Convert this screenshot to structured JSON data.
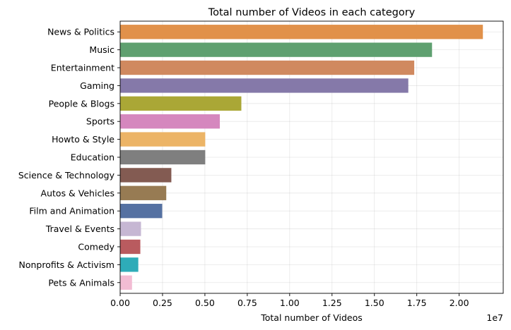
{
  "chart_data": {
    "type": "bar",
    "orientation": "horizontal",
    "title": "Total number of Videos in each category",
    "xlabel": "Total number of Videos",
    "ylabel": "",
    "x_scale_label": "1e7",
    "xlim": [
      0,
      22600000
    ],
    "x_ticks": [
      0,
      2500000,
      5000000,
      7500000,
      10000000,
      12500000,
      15000000,
      17500000,
      20000000
    ],
    "x_tick_labels": [
      "0.00",
      "0.25",
      "0.50",
      "0.75",
      "1.00",
      "1.25",
      "1.50",
      "1.75",
      "2.00"
    ],
    "grid": true,
    "categories": [
      "News & Politics",
      "Music",
      "Entertainment",
      "Gaming",
      "People & Blogs",
      "Sports",
      "Howto & Style",
      "Education",
      "Science & Technology",
      "Autos & Vehicles",
      "Film and Animation",
      "Travel & Events",
      "Comedy",
      "Nonprofits & Activism",
      "Pets & Animals"
    ],
    "values": [
      21400000,
      18400000,
      17350000,
      17000000,
      7150000,
      5880000,
      5020000,
      5020000,
      3020000,
      2720000,
      2480000,
      1230000,
      1190000,
      1070000,
      700000
    ],
    "colors": [
      "#e1914a",
      "#5fa070",
      "#d0895f",
      "#8579a9",
      "#aaa736",
      "#d587be",
      "#ecb466",
      "#7f7f7f",
      "#835b52",
      "#977b53",
      "#5571a2",
      "#c6b7d3",
      "#b95b5f",
      "#2eacb8",
      "#f2bcd3"
    ]
  }
}
